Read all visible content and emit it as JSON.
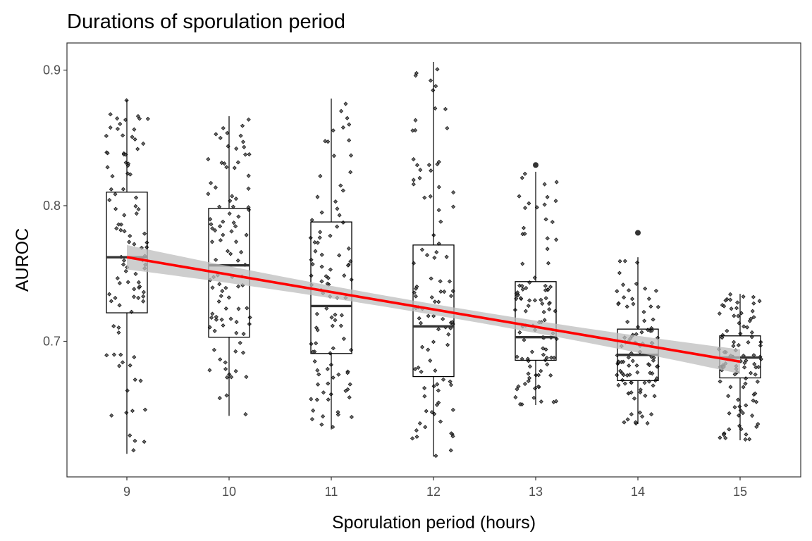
{
  "chart_data": {
    "type": "boxplot",
    "title": "Durations of sporulation period",
    "xlabel": "Sporulation period (hours)",
    "ylabel": "AUROC",
    "categories": [
      "9",
      "10",
      "11",
      "12",
      "13",
      "14",
      "15"
    ],
    "x_values": [
      9,
      10,
      11,
      12,
      13,
      14,
      15
    ],
    "ylim": [
      0.6,
      0.92
    ],
    "y_ticks": [
      0.7,
      0.8,
      0.9
    ],
    "y_tick_labels": [
      "0.7",
      "0.8",
      "0.9"
    ],
    "grid": false,
    "boxes": [
      {
        "x": 9,
        "min": 0.617,
        "q1": 0.721,
        "median": 0.762,
        "q3": 0.81,
        "max": 0.878,
        "outliers": []
      },
      {
        "x": 10,
        "min": 0.645,
        "q1": 0.703,
        "median": 0.756,
        "q3": 0.798,
        "max": 0.866,
        "outliers": []
      },
      {
        "x": 11,
        "min": 0.635,
        "q1": 0.691,
        "median": 0.726,
        "q3": 0.788,
        "max": 0.879,
        "outliers": []
      },
      {
        "x": 12,
        "min": 0.615,
        "q1": 0.674,
        "median": 0.711,
        "q3": 0.771,
        "max": 0.906,
        "outliers": []
      },
      {
        "x": 13,
        "min": 0.653,
        "q1": 0.686,
        "median": 0.703,
        "q3": 0.744,
        "max": 0.825,
        "outliers": [
          0.83
        ]
      },
      {
        "x": 14,
        "min": 0.639,
        "q1": 0.671,
        "median": 0.69,
        "q3": 0.709,
        "max": 0.762,
        "outliers": [
          0.78
        ]
      },
      {
        "x": 15,
        "min": 0.627,
        "q1": 0.673,
        "median": 0.688,
        "q3": 0.704,
        "max": 0.735,
        "outliers": []
      }
    ],
    "regression": {
      "method": "linear",
      "x_range": [
        9,
        15
      ],
      "y_start": 0.762,
      "y_end": 0.685,
      "ci_at_ends": 0.009,
      "ci_at_center": 0.004,
      "line_color": "#ff0000",
      "band_color": "#bdbdbd"
    },
    "jitter_points": {
      "points_per_group": 100,
      "marker": "diamond",
      "fill_color": "#4d4d4d",
      "edge_color": "#000000"
    }
  }
}
